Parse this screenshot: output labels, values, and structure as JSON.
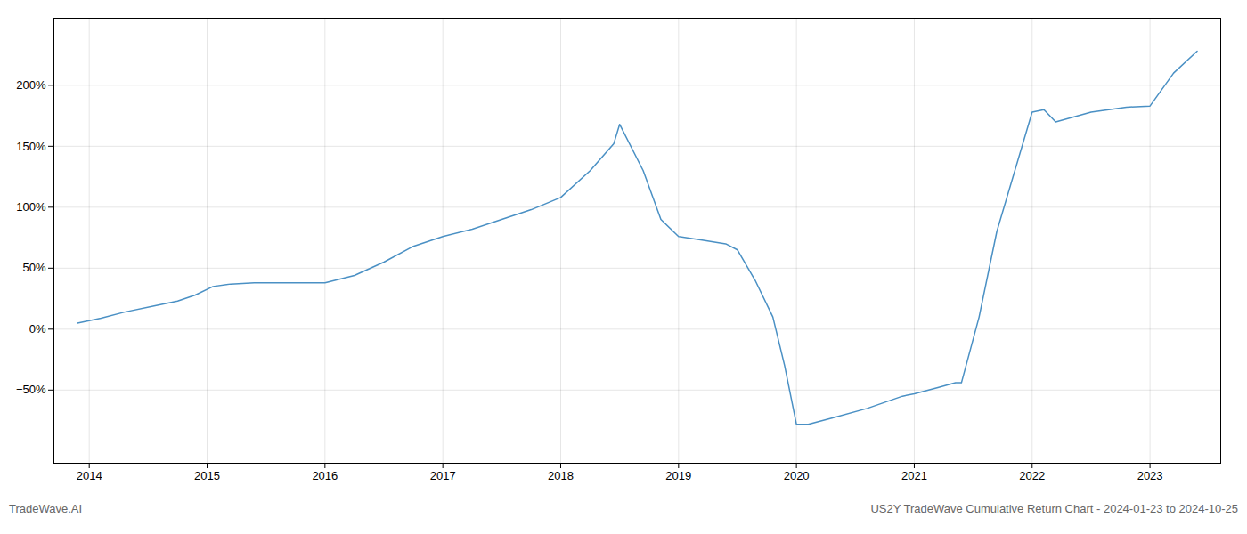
{
  "chart_data": {
    "type": "line",
    "annotations": [
      "TradeWave.AI",
      "US2Y TradeWave Cumulative Return Chart - 2024-01-23 to 2024-10-25"
    ],
    "x": [
      2013.9,
      2014.1,
      2014.3,
      2014.55,
      2014.75,
      2014.9,
      2015.05,
      2015.2,
      2015.4,
      2015.6,
      2015.8,
      2016.0,
      2016.25,
      2016.5,
      2016.75,
      2017.0,
      2017.25,
      2017.5,
      2017.75,
      2018.0,
      2018.25,
      2018.45,
      2018.5,
      2018.7,
      2018.85,
      2019.0,
      2019.2,
      2019.4,
      2019.5,
      2019.65,
      2019.8,
      2019.9,
      2020.0,
      2020.1,
      2020.3,
      2020.6,
      2020.9,
      2021.0,
      2021.2,
      2021.35,
      2021.4,
      2021.55,
      2021.7,
      2022.0,
      2022.1,
      2022.2,
      2022.5,
      2022.8,
      2023.0,
      2023.2,
      2023.4
    ],
    "values": [
      5,
      9,
      14,
      19,
      23,
      28,
      35,
      37,
      38,
      38,
      38,
      38,
      44,
      55,
      68,
      76,
      82,
      90,
      98,
      108,
      130,
      152,
      168,
      130,
      90,
      76,
      73,
      70,
      65,
      40,
      10,
      -30,
      -78,
      -78,
      -73,
      -65,
      -55,
      -53,
      -48,
      -44,
      -44,
      10,
      80,
      178,
      180,
      170,
      178,
      182,
      183,
      210,
      228
    ],
    "color": "#4a90c4",
    "xlim": [
      2013.7,
      2023.6
    ],
    "xticks": [
      2014,
      2015,
      2016,
      2017,
      2018,
      2019,
      2020,
      2021,
      2022,
      2023
    ],
    "ylim": [
      -110,
      255
    ],
    "yticks": [
      {
        "value": -50,
        "label": "−50%"
      },
      {
        "value": 0,
        "label": "0%"
      },
      {
        "value": 50,
        "label": "50%"
      },
      {
        "value": 100,
        "label": "100%"
      },
      {
        "value": 150,
        "label": "150%"
      },
      {
        "value": 200,
        "label": "200%"
      }
    ],
    "grid": true
  }
}
